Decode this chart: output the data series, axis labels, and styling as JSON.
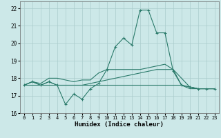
{
  "xlabel": "Humidex (Indice chaleur)",
  "background_color": "#cce8e8",
  "grid_color": "#aacccc",
  "line_color": "#2a7a6a",
  "x_values": [
    0,
    1,
    2,
    3,
    4,
    5,
    6,
    7,
    8,
    9,
    10,
    11,
    12,
    13,
    14,
    15,
    16,
    17,
    18,
    19,
    20,
    21,
    22,
    23
  ],
  "ylim": [
    16,
    22.4
  ],
  "xlim": [
    -0.5,
    23.5
  ],
  "yticks": [
    16,
    17,
    18,
    19,
    20,
    21,
    22
  ],
  "xticks": [
    0,
    1,
    2,
    3,
    4,
    5,
    6,
    7,
    8,
    9,
    10,
    11,
    12,
    13,
    14,
    15,
    16,
    17,
    18,
    19,
    20,
    21,
    22,
    23
  ],
  "line1": [
    17.6,
    17.8,
    17.6,
    17.8,
    17.6,
    16.5,
    17.1,
    16.8,
    17.4,
    17.7,
    18.5,
    19.8,
    20.3,
    19.9,
    21.9,
    21.9,
    20.6,
    20.6,
    18.4,
    17.6,
    17.5,
    17.4,
    17.4,
    17.4
  ],
  "line2": [
    17.6,
    17.8,
    17.6,
    17.8,
    17.6,
    17.6,
    17.6,
    17.6,
    17.7,
    17.8,
    17.9,
    18.0,
    18.1,
    18.2,
    18.3,
    18.4,
    18.5,
    18.5,
    18.5,
    18.0,
    17.5,
    17.4,
    17.4,
    17.4
  ],
  "line3": [
    17.6,
    17.6,
    17.6,
    17.6,
    17.6,
    17.6,
    17.6,
    17.6,
    17.6,
    17.6,
    17.6,
    17.6,
    17.6,
    17.6,
    17.6,
    17.6,
    17.6,
    17.6,
    17.6,
    17.6,
    17.5,
    17.4,
    17.4,
    17.4
  ],
  "line4": [
    17.6,
    17.8,
    17.7,
    18.0,
    18.0,
    17.9,
    17.8,
    17.9,
    17.9,
    18.3,
    18.5,
    18.5,
    18.5,
    18.5,
    18.5,
    18.6,
    18.7,
    18.8,
    18.5,
    17.6,
    17.4,
    17.4,
    17.4,
    17.4
  ]
}
